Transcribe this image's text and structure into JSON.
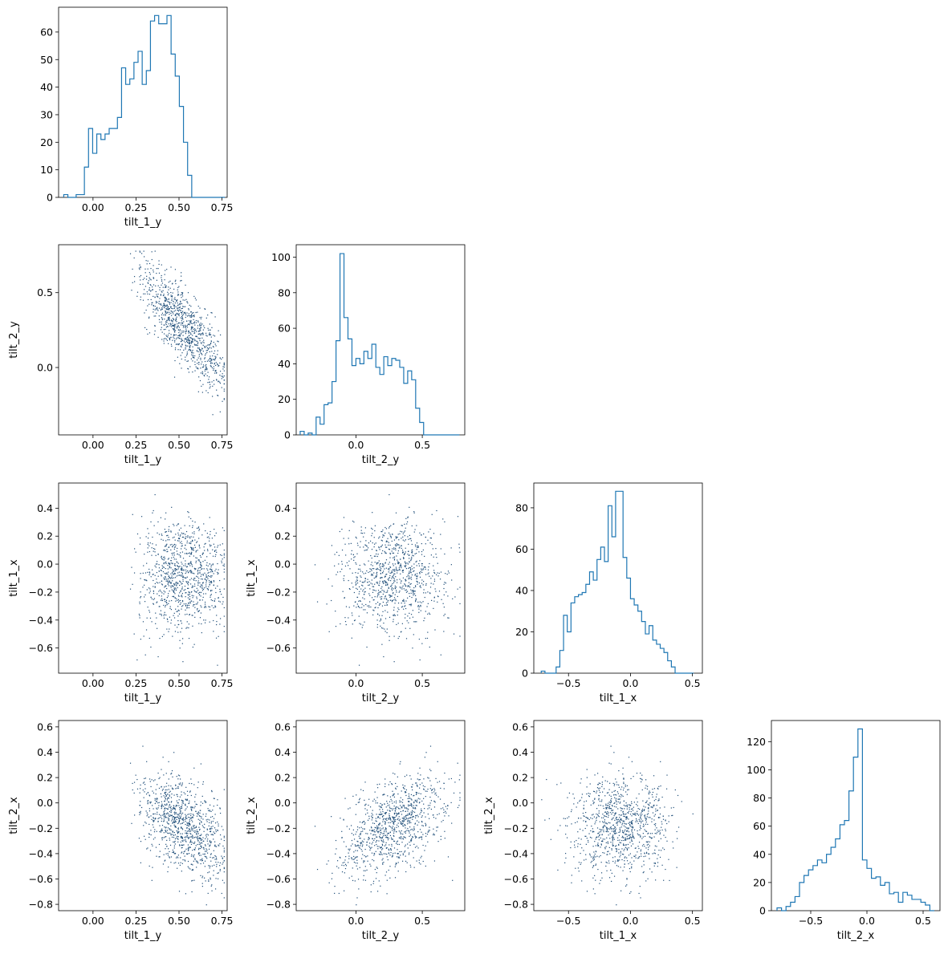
{
  "chart_data": {
    "type": "corner-plot",
    "histogram_color": "#1f77b4",
    "scatter_color": "#1f4e79",
    "variables": [
      {
        "name": "tilt_1_y",
        "lim": [
          -0.2,
          0.78
        ],
        "ticks": [
          0.0,
          0.25,
          0.5,
          0.75
        ],
        "tick_labels": [
          "0.00",
          "0.25",
          "0.50",
          "0.75"
        ]
      },
      {
        "name": "tilt_2_y",
        "lim": [
          -0.45,
          0.82
        ],
        "ticks": [
          0.0,
          0.5
        ],
        "tick_labels": [
          "0.0",
          "0.5"
        ]
      },
      {
        "name": "tilt_1_x",
        "lim": [
          -0.78,
          0.58
        ],
        "ticks": [
          -0.6,
          -0.4,
          -0.2,
          0.0,
          0.2,
          0.4
        ],
        "tick_labels": [
          "−0.6",
          "−0.4",
          "−0.2",
          "0.0",
          "0.2",
          "0.4"
        ],
        "xticks": [
          -0.5,
          0.0,
          0.5
        ],
        "xtick_labels": [
          "−0.5",
          "0.0",
          "0.5"
        ]
      },
      {
        "name": "tilt_2_x",
        "lim": [
          -0.85,
          0.65
        ],
        "ticks": [
          -0.8,
          -0.6,
          -0.4,
          -0.2,
          0.0,
          0.2,
          0.4,
          0.6
        ],
        "tick_labels": [
          "−0.8",
          "−0.6",
          "−0.4",
          "−0.2",
          "0.0",
          "0.2",
          "0.4",
          "0.6"
        ],
        "xticks": [
          -0.5,
          0.0,
          0.5
        ],
        "xtick_labels": [
          "−0.5",
          "0.0",
          "0.5"
        ]
      }
    ],
    "histograms": [
      {
        "variable": "tilt_1_y",
        "ylim": [
          0,
          69
        ],
        "yticks": [
          0,
          10,
          20,
          30,
          40,
          50,
          60
        ],
        "bin_edges": [
          -0.17,
          -0.146,
          -0.122,
          -0.098,
          -0.074,
          -0.05,
          -0.026,
          -0.002,
          0.022,
          0.046,
          0.07,
          0.094,
          0.118,
          0.142,
          0.166,
          0.19,
          0.214,
          0.238,
          0.262,
          0.286,
          0.31,
          0.334,
          0.358,
          0.382,
          0.406,
          0.43,
          0.454,
          0.478,
          0.502,
          0.526,
          0.55,
          0.574,
          0.598,
          0.622,
          0.646,
          0.67,
          0.694,
          0.718,
          0.742,
          0.766
        ],
        "counts": [
          1,
          0,
          0,
          1,
          1,
          11,
          25,
          16,
          23,
          21,
          23,
          25,
          25,
          29,
          47,
          41,
          43,
          49,
          53,
          41,
          46,
          64,
          66,
          63,
          63,
          66,
          52,
          44,
          33,
          20,
          8,
          0,
          0,
          0,
          0,
          0,
          0,
          0,
          0
        ]
      },
      {
        "variable": "tilt_2_y",
        "ylim": [
          0,
          107
        ],
        "yticks": [
          0,
          20,
          40,
          60,
          80,
          100
        ],
        "bin_edges": [
          -0.42,
          -0.39,
          -0.36,
          -0.33,
          -0.3,
          -0.27,
          -0.24,
          -0.21,
          -0.18,
          -0.15,
          -0.12,
          -0.09,
          -0.06,
          -0.03,
          0.0,
          0.03,
          0.06,
          0.09,
          0.12,
          0.15,
          0.18,
          0.21,
          0.24,
          0.27,
          0.3,
          0.33,
          0.36,
          0.39,
          0.42,
          0.45,
          0.48,
          0.51,
          0.54,
          0.57,
          0.6,
          0.63,
          0.66,
          0.69,
          0.72,
          0.75,
          0.78
        ],
        "counts": [
          2,
          0,
          1,
          0,
          10,
          6,
          17,
          18,
          30,
          53,
          102,
          66,
          54,
          39,
          43,
          40,
          47,
          43,
          51,
          38,
          34,
          44,
          39,
          43,
          42,
          38,
          29,
          36,
          31,
          15,
          7,
          0,
          0,
          0,
          0,
          0,
          0,
          0,
          0,
          0
        ]
      },
      {
        "variable": "tilt_1_x",
        "ylim": [
          0,
          92
        ],
        "yticks": [
          0,
          20,
          40,
          60,
          80
        ],
        "bin_edges": [
          -0.72,
          -0.69,
          -0.66,
          -0.63,
          -0.6,
          -0.57,
          -0.54,
          -0.51,
          -0.48,
          -0.45,
          -0.42,
          -0.39,
          -0.36,
          -0.33,
          -0.3,
          -0.27,
          -0.24,
          -0.21,
          -0.18,
          -0.15,
          -0.12,
          -0.09,
          -0.06,
          -0.03,
          0.0,
          0.03,
          0.06,
          0.09,
          0.12,
          0.15,
          0.18,
          0.21,
          0.24,
          0.27,
          0.3,
          0.33,
          0.36,
          0.39,
          0.42,
          0.45,
          0.48,
          0.51
        ],
        "counts": [
          1,
          0,
          0,
          0,
          3,
          11,
          28,
          20,
          34,
          37,
          38,
          39,
          43,
          49,
          45,
          55,
          61,
          54,
          81,
          66,
          88,
          88,
          56,
          46,
          36,
          33,
          30,
          25,
          19,
          23,
          16,
          14,
          12,
          10,
          6,
          3,
          0,
          0,
          0,
          0,
          0
        ]
      },
      {
        "variable": "tilt_2_x",
        "ylim": [
          0,
          135
        ],
        "yticks": [
          0,
          20,
          40,
          60,
          80,
          100,
          120
        ],
        "bin_edges": [
          -0.8,
          -0.76,
          -0.72,
          -0.68,
          -0.64,
          -0.6,
          -0.56,
          -0.52,
          -0.48,
          -0.44,
          -0.4,
          -0.36,
          -0.32,
          -0.28,
          -0.24,
          -0.2,
          -0.16,
          -0.12,
          -0.08,
          -0.04,
          0.0,
          0.04,
          0.08,
          0.12,
          0.16,
          0.2,
          0.24,
          0.28,
          0.32,
          0.36,
          0.4,
          0.44,
          0.48,
          0.52,
          0.56,
          0.6
        ],
        "counts": [
          2,
          0,
          3,
          6,
          10,
          20,
          25,
          29,
          32,
          36,
          34,
          40,
          45,
          51,
          61,
          64,
          85,
          109,
          129,
          36,
          30,
          23,
          24,
          18,
          20,
          12,
          13,
          6,
          13,
          11,
          8,
          8,
          6,
          4,
          0
        ]
      }
    ],
    "scatter_pairs": [
      {
        "x": "tilt_1_y",
        "y": "tilt_2_y"
      },
      {
        "x": "tilt_1_y",
        "y": "tilt_1_x"
      },
      {
        "x": "tilt_2_y",
        "y": "tilt_1_x"
      },
      {
        "x": "tilt_1_y",
        "y": "tilt_2_x"
      },
      {
        "x": "tilt_2_y",
        "y": "tilt_2_x"
      },
      {
        "x": "tilt_1_x",
        "y": "tilt_2_x"
      }
    ]
  }
}
